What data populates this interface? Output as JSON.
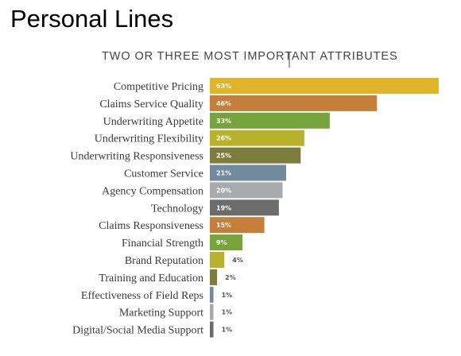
{
  "slide": {
    "title": "Personal Lines"
  },
  "chart_data": {
    "type": "bar",
    "orientation": "horizontal",
    "title": "TWO OR THREE MOST IMPORTANT ATTRIBUTES",
    "xlabel": "",
    "ylabel": "",
    "xlim": [
      0,
      63
    ],
    "grid": false,
    "legend": "none",
    "categories": [
      "Competitive Pricing",
      "Claims Service Quality",
      "Underwriting Appetite",
      "Underwriting Flexibility",
      "Underwriting Responsiveness",
      "Customer Service",
      "Agency Compensation",
      "Technology",
      "Claims Responsiveness",
      "Financial Strength",
      "Brand Reputation",
      "Training and Education",
      "Effectiveness of Field Reps",
      "Marketing Support",
      "Digital/Social Media Support"
    ],
    "values": [
      63,
      46,
      33,
      26,
      25,
      21,
      20,
      19,
      15,
      9,
      4,
      2,
      1,
      1,
      1
    ],
    "value_labels": [
      "63%",
      "46%",
      "33%",
      "26%",
      "25%",
      "21%",
      "20%",
      "19%",
      "15%",
      "9%",
      "4%",
      "2%",
      "1%",
      "1%",
      "1%"
    ],
    "colors": [
      "#e0b52a",
      "#c57f3a",
      "#77a33c",
      "#b7b22b",
      "#7c7c3c",
      "#718a9e",
      "#a9aaab",
      "#6c6c6c",
      "#c57f3a",
      "#77a33c",
      "#b7b22b",
      "#7c7c3c",
      "#718a9e",
      "#a9aaab",
      "#6c6c6c"
    ]
  }
}
